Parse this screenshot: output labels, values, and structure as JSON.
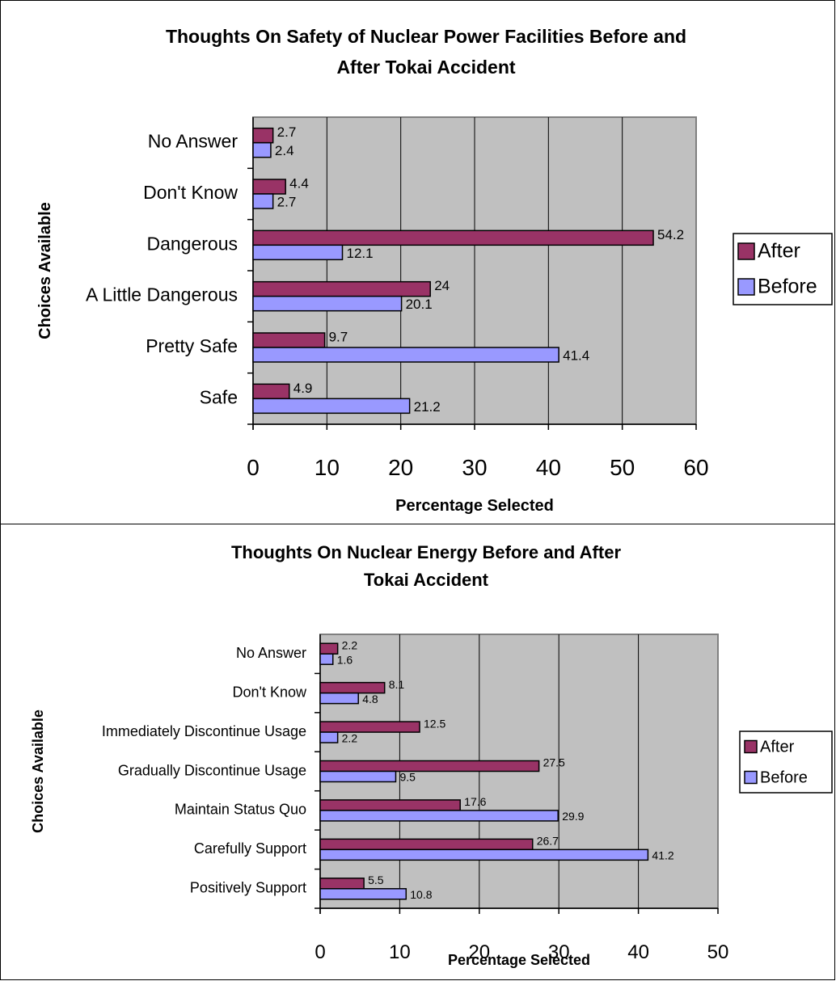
{
  "colors": {
    "after": "#993366",
    "before": "#9999ff",
    "plot_bg": "#c0c0c0",
    "grid": "#000000"
  },
  "chart_data": [
    {
      "type": "bar",
      "orientation": "horizontal",
      "title_line1": "Thoughts On Safety of Nuclear Power Facilities Before and",
      "title_line2": "After Tokai Accident",
      "xlabel": "Percentage Selected",
      "ylabel": "Choices Available",
      "xlim": [
        0,
        60
      ],
      "xticks": [
        "0",
        "10",
        "20",
        "30",
        "40",
        "50",
        "60"
      ],
      "grid": "vertical",
      "legend": "right",
      "categories": [
        "No Answer",
        "Don't Know",
        "Dangerous",
        "A Little Dangerous",
        "Pretty Safe",
        "Safe"
      ],
      "series": [
        {
          "name": "After",
          "values": [
            2.7,
            4.4,
            54.2,
            24,
            9.7,
            4.9
          ],
          "labels": [
            "2.7",
            "4.4",
            "54.2",
            "24",
            "9.7",
            "4.9"
          ]
        },
        {
          "name": "Before",
          "values": [
            2.4,
            2.7,
            12.1,
            20.1,
            41.4,
            21.2
          ],
          "labels": [
            "2.4",
            "2.7",
            "12.1",
            "20.1",
            "41.4",
            "21.2"
          ]
        }
      ]
    },
    {
      "type": "bar",
      "orientation": "horizontal",
      "title_line1": "Thoughts On  Nuclear Energy Before and After",
      "title_line2": "Tokai Accident",
      "xlabel": "Percentage Selected",
      "ylabel": "Choices Available",
      "xlim": [
        0,
        50
      ],
      "xticks": [
        "0",
        "10",
        "20",
        "30",
        "40",
        "50"
      ],
      "grid": "vertical",
      "legend": "right",
      "categories": [
        "No Answer",
        "Don't Know",
        "Immediately Discontinue Usage",
        "Gradually Discontinue Usage",
        "Maintain Status Quo",
        "Carefully Support",
        "Positively Support"
      ],
      "series": [
        {
          "name": "After",
          "values": [
            2.2,
            8.1,
            12.5,
            27.5,
            17.6,
            26.7,
            5.5
          ],
          "labels": [
            "2.2",
            "8.1",
            "12.5",
            "27.5",
            "17.6",
            "26.7",
            "5.5"
          ]
        },
        {
          "name": "Before",
          "values": [
            1.6,
            4.8,
            2.2,
            9.5,
            29.9,
            41.2,
            10.8
          ],
          "labels": [
            "1.6",
            "4.8",
            "2.2",
            "9.5",
            "29.9",
            "41.2",
            "10.8"
          ]
        }
      ]
    }
  ]
}
